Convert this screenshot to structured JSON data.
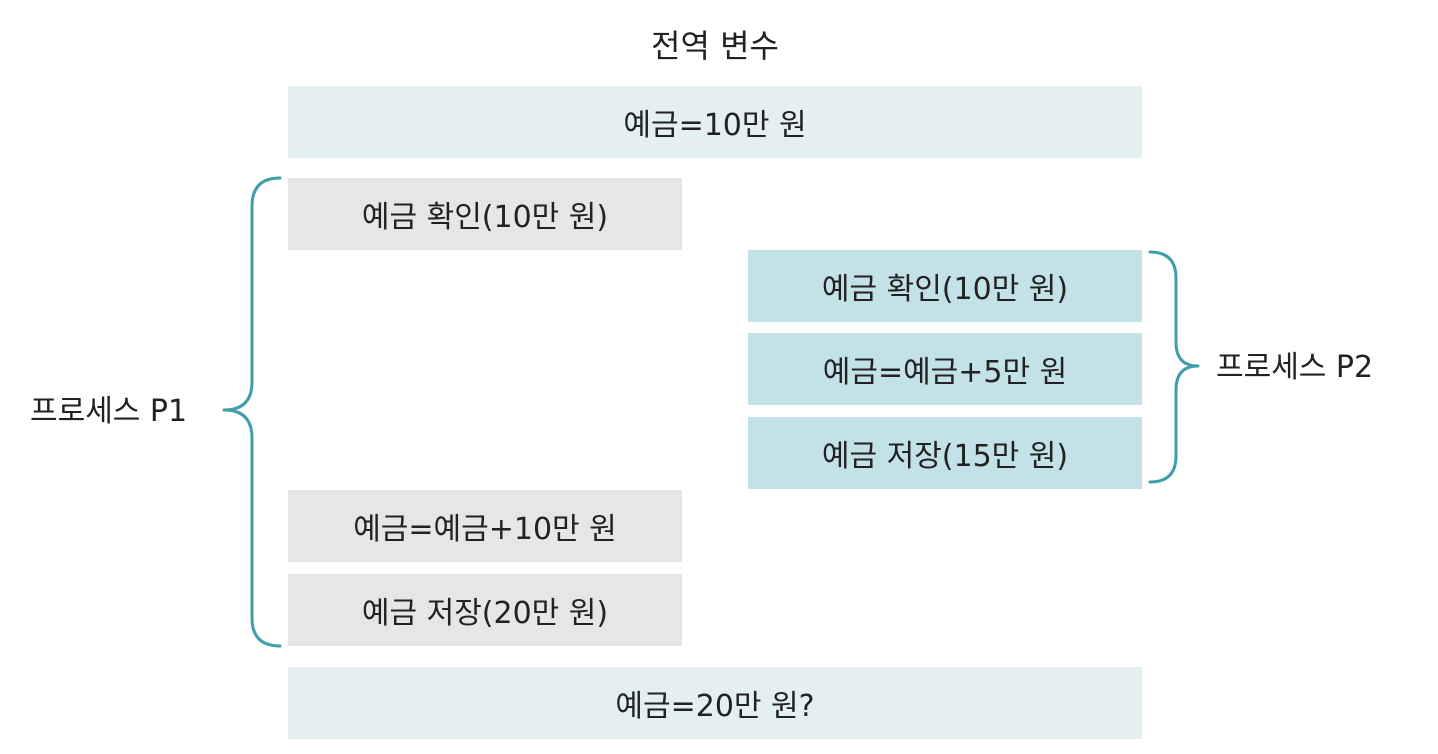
{
  "title": "전역 변수",
  "global": {
    "initial": "예금=10만 원",
    "final": "예금=20만 원?"
  },
  "p1": {
    "label": "프로세스 P1",
    "steps": [
      "예금 확인(10만 원)",
      "예금=예금+10만 원",
      "예금 저장(20만 원)"
    ]
  },
  "p2": {
    "label": "프로세스 P2",
    "steps": [
      "예금 확인(10만 원)",
      "예금=예금+5만 원",
      "예금 저장(15만 원)"
    ]
  },
  "colors": {
    "global_box": "#e3eff1",
    "p1_box": "#e6e6e6",
    "p2_box": "#c3e2e8",
    "brace": "#3f9ea8",
    "text": "#222222"
  }
}
